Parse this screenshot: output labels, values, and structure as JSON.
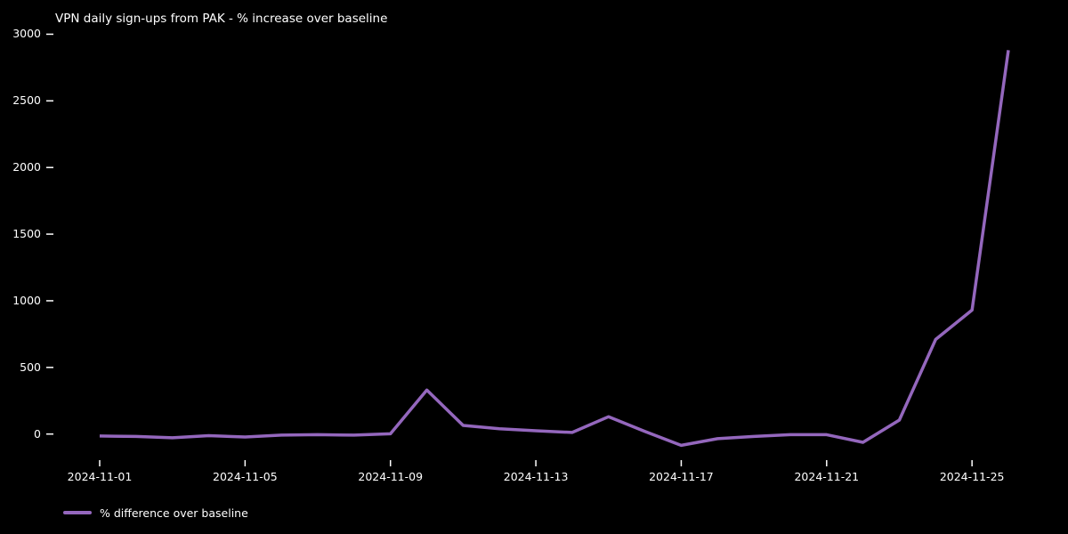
{
  "colors": {
    "background": "#000000",
    "line": "#9467bd",
    "text": "#ffffff",
    "tick": "#ffffff"
  },
  "chart_data": {
    "type": "line",
    "title": "VPN daily sign-ups from PAK - % increase over baseline",
    "xlabel": "",
    "ylabel": "",
    "grid": false,
    "legend_position": "lower left",
    "x": [
      "2024-11-01",
      "2024-11-02",
      "2024-11-03",
      "2024-11-04",
      "2024-11-05",
      "2024-11-06",
      "2024-11-07",
      "2024-11-08",
      "2024-11-09",
      "2024-11-10",
      "2024-11-11",
      "2024-11-12",
      "2024-11-13",
      "2024-11-14",
      "2024-11-15",
      "2024-11-16",
      "2024-11-17",
      "2024-11-18",
      "2024-11-19",
      "2024-11-20",
      "2024-11-21",
      "2024-11-22",
      "2024-11-23",
      "2024-11-24",
      "2024-11-25",
      "2024-11-26"
    ],
    "series": [
      {
        "name": "% difference over baseline",
        "values": [
          -15,
          -18,
          -28,
          -12,
          -22,
          -8,
          -5,
          -8,
          2,
          330,
          65,
          40,
          25,
          12,
          130,
          20,
          -85,
          -35,
          -18,
          -5,
          -5,
          -62,
          105,
          710,
          930,
          2880
        ]
      }
    ],
    "xticks": [
      "2024-11-01",
      "2024-11-05",
      "2024-11-09",
      "2024-11-13",
      "2024-11-17",
      "2024-11-21",
      "2024-11-25"
    ],
    "yticks": [
      0,
      500,
      1000,
      1500,
      2000,
      2500,
      3000
    ],
    "ylim": [
      -150,
      3000
    ]
  }
}
